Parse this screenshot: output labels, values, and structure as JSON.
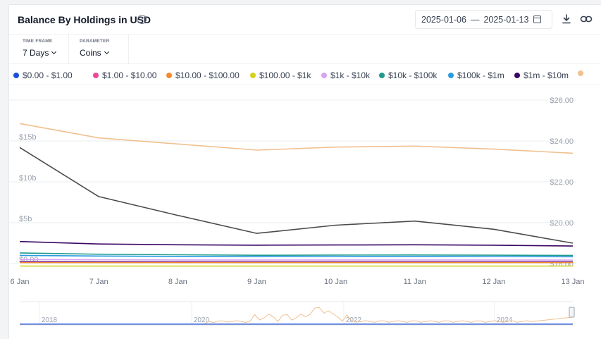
{
  "header": {
    "title": "Balance By Holdings in USD",
    "help_icon": "question-circle-icon",
    "date_start": "2025-01-06",
    "date_sep": "—",
    "date_end": "2025-01-13"
  },
  "controls": {
    "timeframe_label": "TIME FRAME",
    "timeframe_value": "7 Days",
    "parameter_label": "PARAMETER",
    "parameter_value": "Coins"
  },
  "legend": [
    {
      "label": "$0.00 - $1.00",
      "color": "#1d4ed8"
    },
    {
      "label": "$1.00 - $10.00",
      "color": "#ec4899"
    },
    {
      "label": "$10.00 - $100.00",
      "color": "#f28b30"
    },
    {
      "label": "$100.00 - $1k",
      "color": "#d4d11a"
    },
    {
      "label": "$1k - $10k",
      "color": "#d8a4f0"
    },
    {
      "label": "$10k - $100k",
      "color": "#1f9a8e"
    },
    {
      "label": "$100k - $1m",
      "color": "#2b9be0"
    },
    {
      "label": "$1m - $10m",
      "color": "#3b0764"
    },
    {
      "label": "",
      "color": "#f0c08e"
    }
  ],
  "chart_data": {
    "type": "line",
    "x": [
      "6 Jan",
      "7 Jan",
      "8 Jan",
      "9 Jan",
      "10 Jan",
      "11 Jan",
      "12 Jan",
      "13 Jan"
    ],
    "y_left_ticks": [
      "$0.00",
      "$5b",
      "$10b",
      "$15b"
    ],
    "y_left_range": [
      0,
      20
    ],
    "y_right_ticks": [
      "$18.00",
      "$20.00",
      "$22.00",
      "$24.00",
      "$26.00"
    ],
    "y_right_range": [
      18,
      26
    ],
    "grid": true,
    "series": [
      {
        "color": "#f0c08e",
        "axis": "right",
        "values": [
          24.85,
          24.15,
          23.85,
          23.55,
          23.7,
          23.75,
          23.6,
          23.4
        ]
      },
      {
        "color": "#4b4b4b",
        "axis": "left",
        "values": [
          14.2,
          8.2,
          5.9,
          3.7,
          4.7,
          5.2,
          4.2,
          2.5
        ]
      },
      {
        "color": "#3b0764",
        "axis": "left",
        "values": [
          2.7,
          2.4,
          2.3,
          2.25,
          2.28,
          2.3,
          2.25,
          2.15
        ]
      },
      {
        "color": "#2b9be0",
        "axis": "left",
        "values": [
          1.0,
          0.92,
          0.88,
          0.85,
          0.86,
          0.87,
          0.86,
          0.84
        ]
      },
      {
        "color": "#1f9a8e",
        "axis": "left",
        "values": [
          1.3,
          1.15,
          1.08,
          1.02,
          1.04,
          1.05,
          1.03,
          1.0
        ]
      },
      {
        "color": "#d8a4f0",
        "axis": "left",
        "values": [
          0.5,
          0.47,
          0.45,
          0.44,
          0.45,
          0.45,
          0.44,
          0.43
        ]
      },
      {
        "color": "#1d4ed8",
        "axis": "left",
        "values": [
          0.28,
          0.27,
          0.26,
          0.26,
          0.26,
          0.26,
          0.26,
          0.25
        ]
      },
      {
        "color": "#ec4899",
        "axis": "left",
        "values": [
          0.2,
          0.19,
          0.19,
          0.19,
          0.19,
          0.19,
          0.19,
          0.18
        ]
      },
      {
        "color": "#f28b30",
        "axis": "left",
        "values": [
          0.12,
          0.12,
          0.12,
          0.12,
          0.12,
          0.12,
          0.12,
          0.12
        ]
      },
      {
        "color": "#d4d11a",
        "axis": "left",
        "values": [
          -0.3,
          -0.3,
          -0.3,
          -0.3,
          -0.3,
          -0.3,
          -0.3,
          -0.3
        ]
      }
    ],
    "navigator": {
      "labels": [
        "2018",
        "2020",
        "2022",
        "2024"
      ]
    }
  }
}
